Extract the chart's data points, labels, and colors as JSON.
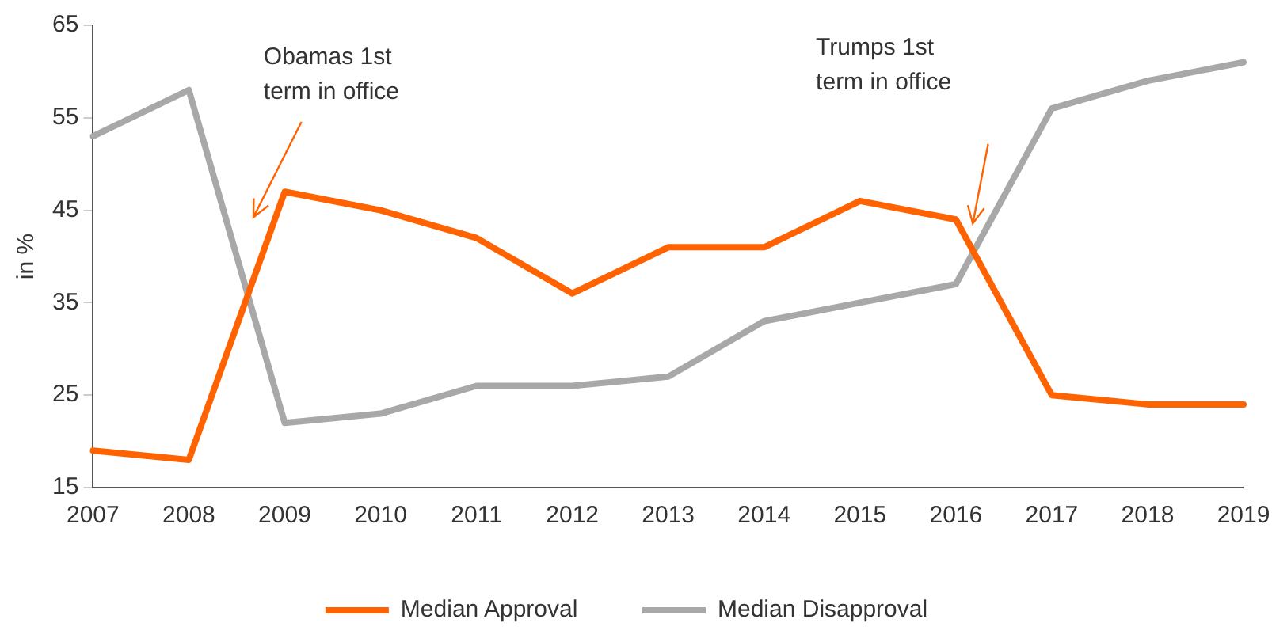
{
  "chart_data": {
    "type": "line",
    "ylabel": "in %",
    "categories": [
      "2007",
      "2008",
      "2009",
      "2010",
      "2011",
      "2012",
      "2013",
      "2014",
      "2015",
      "2016",
      "2017",
      "2018",
      "2019"
    ],
    "series": [
      {
        "name": "Median Approval",
        "color": "#ff6200",
        "values": [
          19,
          18,
          47,
          45,
          42,
          36,
          41,
          41,
          46,
          44,
          25,
          24,
          24
        ]
      },
      {
        "name": "Median Disapproval",
        "color": "#a8a8a8",
        "values": [
          53,
          58,
          22,
          23,
          26,
          26,
          27,
          33,
          35,
          37,
          56,
          59,
          61
        ]
      }
    ],
    "ylim": [
      15,
      65
    ],
    "yticks": [
      15,
      25,
      35,
      45,
      55,
      65
    ],
    "grid": false,
    "legend": "bottom",
    "marker": "none",
    "line_style": "solid",
    "annotations": [
      "Obamas 1st term in office",
      "Trumps 1st term in office"
    ]
  }
}
